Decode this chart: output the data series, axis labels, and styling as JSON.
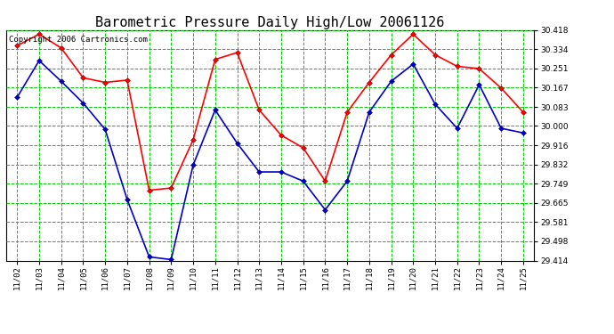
{
  "title": "Barometric Pressure Daily High/Low 20061126",
  "copyright": "Copyright 2006 Cartronics.com",
  "x_labels": [
    "11/02",
    "11/03",
    "11/04",
    "11/05",
    "11/06",
    "11/07",
    "11/08",
    "11/09",
    "11/10",
    "11/11",
    "11/12",
    "11/13",
    "11/14",
    "11/15",
    "11/16",
    "11/17",
    "11/18",
    "11/19",
    "11/20",
    "11/21",
    "11/22",
    "11/23",
    "11/24",
    "11/25"
  ],
  "high_values": [
    30.35,
    30.4,
    30.34,
    30.21,
    30.19,
    30.2,
    29.72,
    29.73,
    29.94,
    30.29,
    30.32,
    30.07,
    29.96,
    29.905,
    29.76,
    30.06,
    30.19,
    30.31,
    30.4,
    30.31,
    30.26,
    30.25,
    30.165,
    30.06
  ],
  "low_values": [
    30.125,
    30.285,
    30.195,
    30.1,
    29.985,
    29.68,
    29.43,
    29.418,
    29.83,
    30.07,
    29.925,
    29.8,
    29.8,
    29.76,
    29.635,
    29.76,
    30.06,
    30.195,
    30.27,
    30.095,
    29.99,
    30.18,
    29.99,
    29.97
  ],
  "ylim_min": 29.414,
  "ylim_max": 30.418,
  "y_ticks": [
    29.414,
    29.498,
    29.581,
    29.665,
    29.749,
    29.832,
    29.916,
    30.0,
    30.083,
    30.167,
    30.251,
    30.334,
    30.418
  ],
  "high_color": "#ff0000",
  "low_color": "#0000cc",
  "marker": "D",
  "marker_size": 3,
  "grid_color": "#00cc00",
  "bg_color": "#ffffff",
  "title_fontsize": 11,
  "copyright_fontsize": 6.5
}
